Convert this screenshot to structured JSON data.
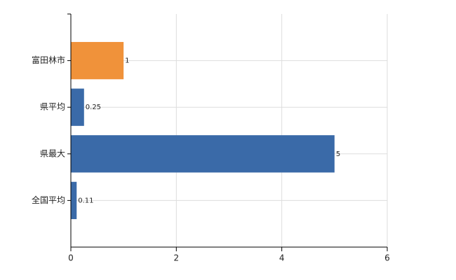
{
  "chart_data": {
    "type": "bar",
    "orientation": "horizontal",
    "categories": [
      "富田林市",
      "県平均",
      "県最大",
      "全国平均"
    ],
    "values": [
      1,
      0.25,
      5,
      0.11
    ],
    "colors": [
      "#f0923a",
      "#3a6aa8",
      "#3a6aa8",
      "#3a6aa8"
    ],
    "xlim": [
      0,
      6
    ],
    "xticks": [
      0,
      2,
      4,
      6
    ],
    "grid": true
  }
}
